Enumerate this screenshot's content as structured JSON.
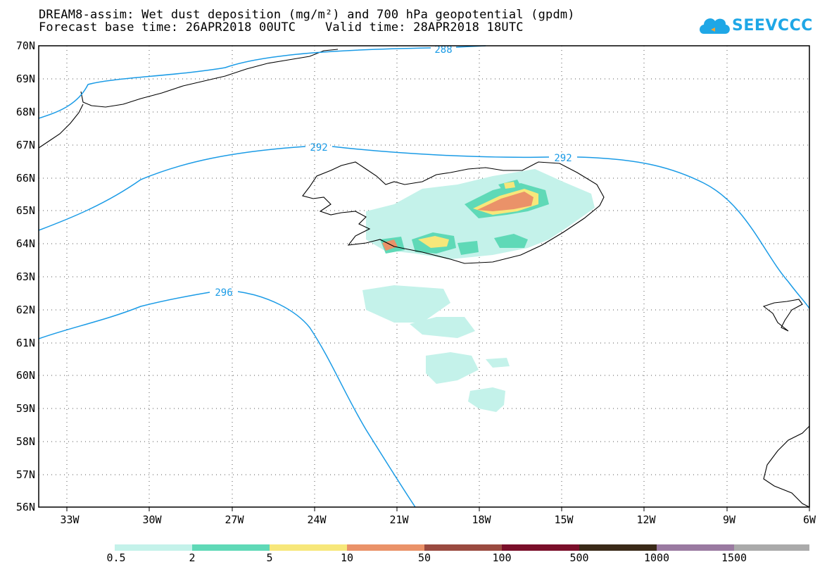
{
  "title_line1": "DREAM8-assim: Wet dust deposition (mg/m²) and 700 hPa geopotential (gpdm)",
  "title_line2": "Forecast base time: 26APR2018 00UTC    Valid time: 28APR2018 18UTC",
  "logo_text": "SEEVCCC",
  "lat_labels": [
    "70N",
    "69N",
    "68N",
    "67N",
    "66N",
    "65N",
    "64N",
    "63N",
    "62N",
    "61N",
    "60N",
    "59N",
    "58N",
    "57N",
    "56N"
  ],
  "lon_labels": [
    "33W",
    "30W",
    "27W",
    "24W",
    "21W",
    "18W",
    "15W",
    "12W",
    "9W",
    "6W"
  ],
  "contour_labels": [
    "288",
    "292",
    "292",
    "296"
  ],
  "legend": {
    "colors": [
      "#c4f2ea",
      "#5fd9b7",
      "#f7e77a",
      "#ea9269",
      "#9a4a40",
      "#7a0f2a",
      "#3a2a18",
      "#9a7aa1",
      "#aaaaaa"
    ],
    "labels": [
      "0.5",
      "2",
      "5",
      "10",
      "50",
      "100",
      "500",
      "1000",
      "1500"
    ]
  },
  "colors": {
    "contour": "#1a9be6",
    "coast": "#000000",
    "grid": "#555555"
  }
}
